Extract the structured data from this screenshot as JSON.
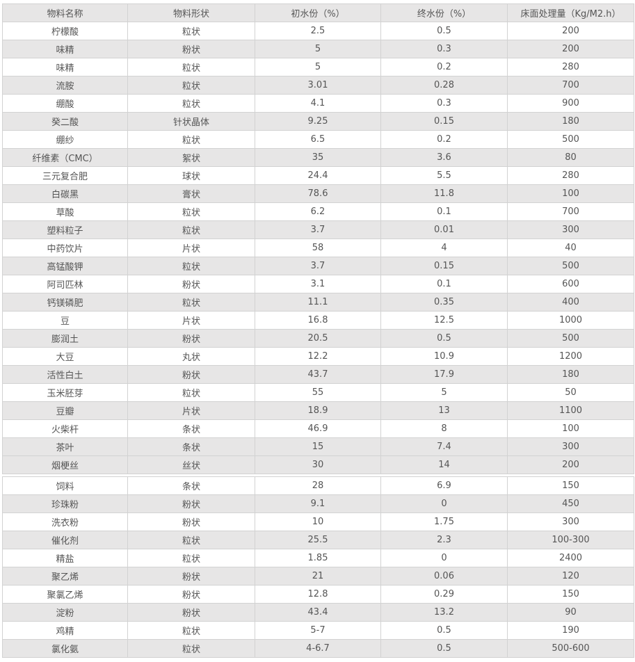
{
  "table": {
    "headers": [
      "物料名称",
      "物料形状",
      "初水份（%）",
      "终水份（%）",
      "床面处理量（Kg/M2.h）"
    ],
    "rows": [
      [
        "柠檬酸",
        "粒状",
        "2.5",
        "0.5",
        "200"
      ],
      [
        "味精",
        "粉状",
        "5",
        "0.3",
        "200"
      ],
      [
        "味精",
        "粒状",
        "5",
        "0.2",
        "280"
      ],
      [
        "流胺",
        "粒状",
        "3.01",
        "0.28",
        "700"
      ],
      [
        "绷酸",
        "粒状",
        "4.1",
        "0.3",
        "900"
      ],
      [
        "癸二酸",
        "针状晶体",
        "9.25",
        "0.15",
        "180"
      ],
      [
        "绷纱",
        "粒状",
        "6.5",
        "0.2",
        "500"
      ],
      [
        "纤维素（CMC）",
        "絮状",
        "35",
        "3.6",
        "80"
      ],
      [
        "三元复合肥",
        "球状",
        "24.4",
        "5.5",
        "280"
      ],
      [
        "白碳黑",
        "膏状",
        "78.6",
        "11.8",
        "100"
      ],
      [
        "草酸",
        "粒状",
        "6.2",
        "0.1",
        "700"
      ],
      [
        "塑料粒子",
        "粒状",
        "3.7",
        "0.01",
        "300"
      ],
      [
        "中药饮片",
        "片状",
        "58",
        "4",
        "40"
      ],
      [
        "高锰酸钾",
        "粒状",
        "3.7",
        "0.15",
        "500"
      ],
      [
        "阿司匹林",
        "粉状",
        "3.1",
        "0.1",
        "600"
      ],
      [
        "钙镁磷肥",
        "粒状",
        "11.1",
        "0.35",
        "400"
      ],
      [
        "豆",
        "片状",
        "16.8",
        "12.5",
        "1000"
      ],
      [
        "膨润土",
        "粉状",
        "20.5",
        "0.5",
        "500"
      ],
      [
        "大豆",
        "丸状",
        "12.2",
        "10.9",
        "1200"
      ],
      [
        "活性白土",
        "粉状",
        "43.7",
        "17.9",
        "180"
      ],
      [
        "玉米胚芽",
        "粒状",
        "55",
        "5",
        "50"
      ],
      [
        "豆瓣",
        "片状",
        "18.9",
        "13",
        "1100"
      ],
      [
        "火柴杆",
        "条状",
        "46.9",
        "8",
        "100"
      ],
      [
        "茶叶",
        "条状",
        "15",
        "7.4",
        "300"
      ],
      [
        "烟梗丝",
        "丝状",
        "30",
        "14",
        "200"
      ]
    ],
    "continued_rows": [
      [
        "饲料",
        "条状",
        "28",
        "6.9",
        "150"
      ],
      [
        "珍珠粉",
        "粉状",
        "9.1",
        "0",
        "450"
      ],
      [
        "洗衣粉",
        "粉状",
        "10",
        "1.75",
        "300"
      ],
      [
        "催化剂",
        "粒状",
        "25.5",
        "2.3",
        "100-300"
      ],
      [
        "精盐",
        "粒状",
        "1.85",
        "0",
        "2400"
      ],
      [
        "聚乙烯",
        "粉状",
        "21",
        "0.06",
        "120"
      ],
      [
        "聚氯乙烯",
        "粉状",
        "12.8",
        "0.29",
        "150"
      ],
      [
        "淀粉",
        "粉状",
        "43.4",
        "13.2",
        "90"
      ],
      [
        "鸡精",
        "粒状",
        "5-7",
        "0.5",
        "190"
      ],
      [
        "氯化氨",
        "粒状",
        "4-6.7",
        "0.5",
        "500-600"
      ]
    ]
  },
  "colors": {
    "stripe": "#e7e6e6",
    "border": "#d2d2d2",
    "text": "#555555"
  }
}
